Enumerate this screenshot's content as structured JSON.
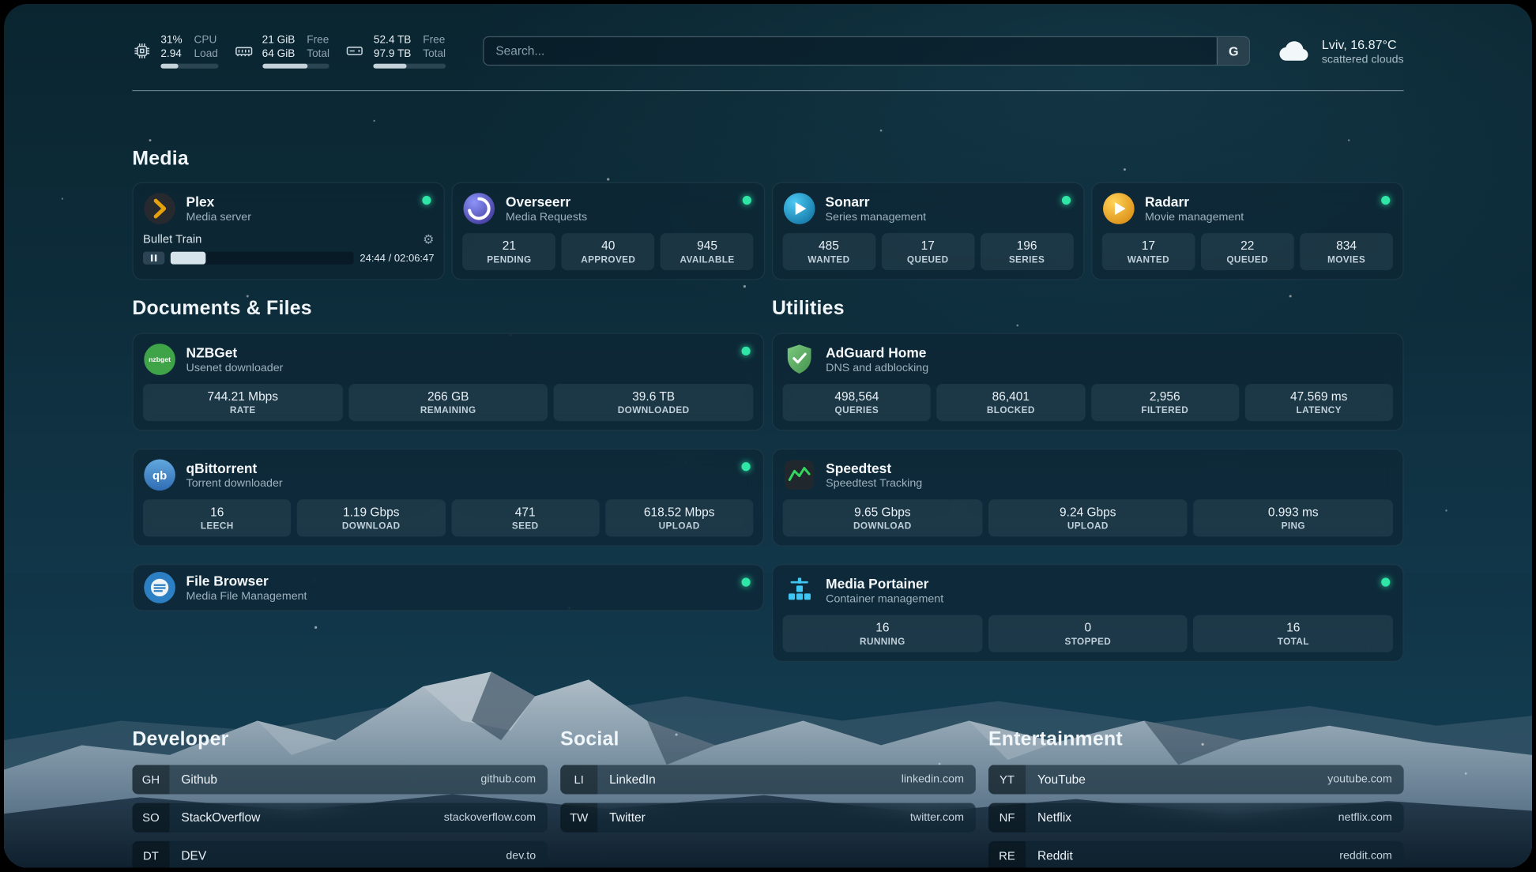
{
  "colors": {
    "status_online": "#2fe6a7",
    "plex_amber": "#e5a00d",
    "sonarr_blue": "#35b0e0",
    "radarr_amber": "#f0a11f",
    "adguard_green": "#5fb961",
    "portainer_blue": "#3fc6f3"
  },
  "icons": {
    "gear_glyph": "⚙"
  },
  "topbar": {
    "cpu": {
      "value1": "31%",
      "label1": "CPU",
      "value2": "2.94",
      "label2": "Load",
      "progress": 31
    },
    "memory": {
      "value1": "21 GiB",
      "label1": "Free",
      "value2": "64 GiB",
      "label2": "Total",
      "progress": 67
    },
    "disk": {
      "value1": "52.4 TB",
      "label1": "Free",
      "value2": "97.9 TB",
      "label2": "Total",
      "progress": 46
    },
    "search": {
      "placeholder": "Search...",
      "provider_label": "G"
    },
    "weather": {
      "location": "Lviv, 16.87°C",
      "condition": "scattered clouds"
    }
  },
  "sections": {
    "media": {
      "heading": "Media",
      "plex": {
        "name": "Plex",
        "desc": "Media server",
        "now_playing": "Bullet Train",
        "time": "24:44 / 02:06:47",
        "progress": 19
      },
      "overseerr": {
        "name": "Overseerr",
        "desc": "Media Requests",
        "stats": [
          {
            "value": "21",
            "label": "PENDING"
          },
          {
            "value": "40",
            "label": "APPROVED"
          },
          {
            "value": "945",
            "label": "AVAILABLE"
          }
        ]
      },
      "sonarr": {
        "name": "Sonarr",
        "desc": "Series management",
        "stats": [
          {
            "value": "485",
            "label": "WANTED"
          },
          {
            "value": "17",
            "label": "QUEUED"
          },
          {
            "value": "196",
            "label": "SERIES"
          }
        ]
      },
      "radarr": {
        "name": "Radarr",
        "desc": "Movie management",
        "stats": [
          {
            "value": "17",
            "label": "WANTED"
          },
          {
            "value": "22",
            "label": "QUEUED"
          },
          {
            "value": "834",
            "label": "MOVIES"
          }
        ]
      }
    },
    "documents": {
      "heading": "Documents & Files",
      "nzbget": {
        "name": "NZBGet",
        "desc": "Usenet downloader",
        "stats": [
          {
            "value": "744.21 Mbps",
            "label": "RATE"
          },
          {
            "value": "266 GB",
            "label": "REMAINING"
          },
          {
            "value": "39.6 TB",
            "label": "DOWNLOADED"
          }
        ]
      },
      "qbittorrent": {
        "name": "qBittorrent",
        "desc": "Torrent downloader",
        "stats": [
          {
            "value": "16",
            "label": "LEECH"
          },
          {
            "value": "1.19 Gbps",
            "label": "DOWNLOAD"
          },
          {
            "value": "471",
            "label": "SEED"
          },
          {
            "value": "618.52 Mbps",
            "label": "UPLOAD"
          }
        ]
      },
      "filebrowser": {
        "name": "File Browser",
        "desc": "Media File Management"
      }
    },
    "utilities": {
      "heading": "Utilities",
      "adguard": {
        "name": "AdGuard Home",
        "desc": "DNS and adblocking",
        "stats": [
          {
            "value": "498,564",
            "label": "QUERIES"
          },
          {
            "value": "86,401",
            "label": "BLOCKED"
          },
          {
            "value": "2,956",
            "label": "FILTERED"
          },
          {
            "value": "47.569 ms",
            "label": "LATENCY"
          }
        ]
      },
      "speedtest": {
        "name": "Speedtest",
        "desc": "Speedtest Tracking",
        "stats": [
          {
            "value": "9.65 Gbps",
            "label": "DOWNLOAD"
          },
          {
            "value": "9.24 Gbps",
            "label": "UPLOAD"
          },
          {
            "value": "0.993 ms",
            "label": "PING"
          }
        ]
      },
      "portainer": {
        "name": "Media Portainer",
        "desc": "Container management",
        "stats": [
          {
            "value": "16",
            "label": "RUNNING"
          },
          {
            "value": "0",
            "label": "STOPPED"
          },
          {
            "value": "16",
            "label": "TOTAL"
          }
        ]
      }
    },
    "developer": {
      "heading": "Developer",
      "bookmarks": [
        {
          "abbr": "GH",
          "name": "Github",
          "url": "github.com"
        },
        {
          "abbr": "SO",
          "name": "StackOverflow",
          "url": "stackoverflow.com"
        },
        {
          "abbr": "DT",
          "name": "DEV",
          "url": "dev.to"
        }
      ]
    },
    "social": {
      "heading": "Social",
      "bookmarks": [
        {
          "abbr": "LI",
          "name": "LinkedIn",
          "url": "linkedin.com"
        },
        {
          "abbr": "TW",
          "name": "Twitter",
          "url": "twitter.com"
        }
      ]
    },
    "entertainment": {
      "heading": "Entertainment",
      "bookmarks": [
        {
          "abbr": "YT",
          "name": "YouTube",
          "url": "youtube.com"
        },
        {
          "abbr": "NF",
          "name": "Netflix",
          "url": "netflix.com"
        },
        {
          "abbr": "RE",
          "name": "Reddit",
          "url": "reddit.com"
        }
      ]
    }
  }
}
